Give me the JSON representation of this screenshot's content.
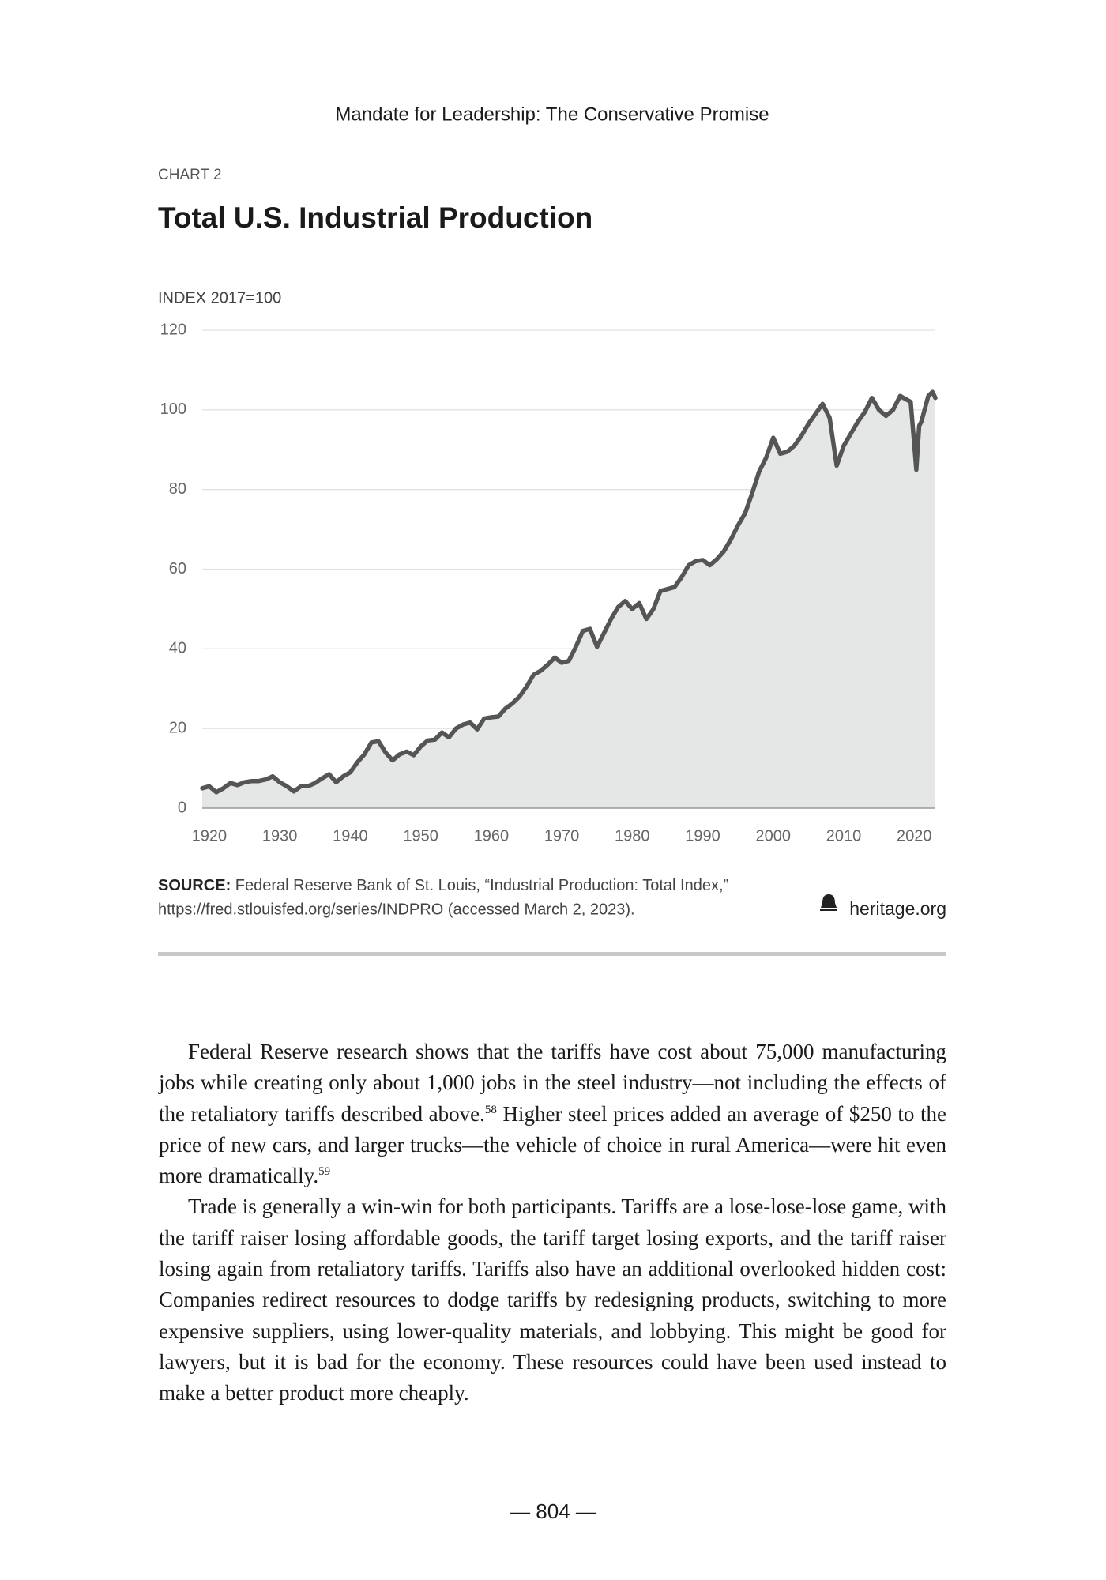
{
  "header": "Mandate for Leadership: The Conservative Promise",
  "chart_data": {
    "type": "area",
    "label": "CHART 2",
    "title": "Total U.S. Industrial Production",
    "y_label": "INDEX 2017=100",
    "x": [
      1919,
      1920,
      1921,
      1922,
      1923,
      1924,
      1925,
      1926,
      1927,
      1928,
      1929,
      1930,
      1931,
      1932,
      1933,
      1934,
      1935,
      1936,
      1937,
      1938,
      1939,
      1940,
      1941,
      1942,
      1943,
      1944,
      1945,
      1946,
      1947,
      1948,
      1949,
      1950,
      1951,
      1952,
      1953,
      1954,
      1955,
      1956,
      1957,
      1958,
      1959,
      1960,
      1961,
      1962,
      1963,
      1964,
      1965,
      1966,
      1967,
      1968,
      1969,
      1970,
      1971,
      1972,
      1973,
      1974,
      1975,
      1976,
      1977,
      1978,
      1979,
      1980,
      1981,
      1982,
      1983,
      1984,
      1985,
      1986,
      1987,
      1988,
      1989,
      1990,
      1991,
      1992,
      1993,
      1994,
      1995,
      1996,
      1997,
      1998,
      1999,
      2000,
      2001,
      2002,
      2003,
      2004,
      2005,
      2006,
      2007,
      2008,
      2009,
      2010,
      2011,
      2012,
      2013,
      2014,
      2015,
      2016,
      2017,
      2018,
      2019,
      2019.5,
      2020.3,
      2020.7,
      2021,
      2022,
      2022.6,
      2023
    ],
    "values": [
      5,
      5.5,
      4,
      5,
      6.3,
      5.8,
      6.5,
      6.8,
      6.8,
      7.2,
      8,
      6.5,
      5.5,
      4.2,
      5.5,
      5.5,
      6.3,
      7.5,
      8.5,
      6.5,
      8,
      9,
      11.5,
      13.5,
      16.5,
      16.8,
      14,
      12,
      13.5,
      14.2,
      13.3,
      15.5,
      17,
      17.2,
      19,
      17.8,
      20,
      21,
      21.5,
      19.8,
      22.5,
      22.8,
      23,
      25,
      26.3,
      28,
      30.5,
      33.5,
      34.5,
      36,
      37.8,
      36.5,
      37,
      40.5,
      44.5,
      45,
      40.5,
      44,
      47.5,
      50.5,
      52,
      50,
      51.5,
      47.5,
      50,
      54.5,
      55,
      55.5,
      58,
      61,
      62,
      62.3,
      61,
      62.5,
      64.5,
      67.5,
      71,
      74,
      79,
      84.5,
      88,
      93,
      89,
      89.5,
      91,
      93.5,
      96.5,
      99,
      101.5,
      98,
      86,
      91,
      94,
      97,
      99.5,
      103,
      100,
      98.5,
      100,
      103.5,
      102.5,
      102,
      85,
      96,
      97,
      103.5,
      104.5,
      103
    ],
    "color": "#555555",
    "fill": "#e5e6e6",
    "xlim": [
      1919,
      2023
    ],
    "xticks": [
      1920,
      1930,
      1940,
      1950,
      1960,
      1970,
      1980,
      1990,
      2000,
      2010,
      2020
    ],
    "ylim": [
      0,
      120
    ],
    "yticks": [
      0,
      20,
      40,
      60,
      80,
      100,
      120
    ],
    "grid": true
  },
  "source": {
    "label": "SOURCE:",
    "lines": [
      " Federal Reserve Bank of St. Louis, “Industrial Production: Total Index,”",
      "https://fred.stlouisfed.org/series/INDPRO (accessed March 2, 2023)."
    ]
  },
  "credit": "heritage.org",
  "body": [
    [
      "Federal Reserve research shows that the tariffs have cost about 75,000 manufacturing jobs while creating only about 1,000 jobs in the steel industry—not including the effects of the retaliatory tariffs described above.",
      "58",
      " Higher steel prices added an average of $250 to the price of new cars, and larger trucks—the vehicle of choice in rural America—were hit even more dramatically.",
      "59"
    ],
    [
      "Trade is generally a win-win for both participants. Tariffs are a lose-lose-lose game, with the tariff raiser losing affordable goods, the tariff target losing exports, and the tariff raiser losing again from retaliatory tariffs. Tariffs also have an additional overlooked hidden cost: Companies redirect resources to dodge tariffs by redesigning products, switching to more expensive suppliers, using lower-quality materials, and lobbying. This might be good for lawyers, but it is bad for the economy. These resources could have been used instead to make a better product more cheaply."
    ]
  ],
  "page_number": "— 804 —"
}
